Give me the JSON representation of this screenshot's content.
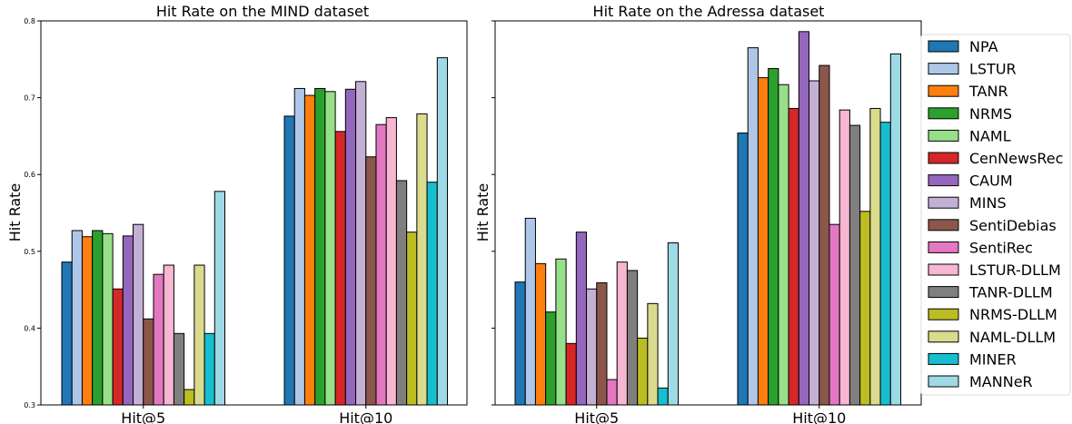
{
  "chart_data": [
    {
      "type": "bar",
      "title": "Hit Rate on the MIND dataset",
      "xlabel": "",
      "ylabel": "Hit Rate",
      "ylim": [
        0.3,
        0.8
      ],
      "yticks": [
        "0.3",
        "0.4",
        "0.5",
        "0.6",
        "0.7",
        "0.8"
      ],
      "categories": [
        "Hit@5",
        "Hit@10"
      ],
      "series": [
        {
          "name": "NPA",
          "values": [
            0.486,
            0.676
          ]
        },
        {
          "name": "LSTUR",
          "values": [
            0.527,
            0.712
          ]
        },
        {
          "name": "TANR",
          "values": [
            0.519,
            0.703
          ]
        },
        {
          "name": "NRMS",
          "values": [
            0.527,
            0.712
          ]
        },
        {
          "name": "NAML",
          "values": [
            0.523,
            0.708
          ]
        },
        {
          "name": "CenNewsRec",
          "values": [
            0.451,
            0.656
          ]
        },
        {
          "name": "CAUM",
          "values": [
            0.52,
            0.711
          ]
        },
        {
          "name": "MINS",
          "values": [
            0.535,
            0.721
          ]
        },
        {
          "name": "SentiDebias",
          "values": [
            0.412,
            0.623
          ]
        },
        {
          "name": "SentiRec",
          "values": [
            0.47,
            0.665
          ]
        },
        {
          "name": "LSTUR-DLLM",
          "values": [
            0.482,
            0.674
          ]
        },
        {
          "name": "TANR-DLLM",
          "values": [
            0.393,
            0.592
          ]
        },
        {
          "name": "NRMS-DLLM",
          "values": [
            0.32,
            0.525
          ]
        },
        {
          "name": "NAML-DLLM",
          "values": [
            0.482,
            0.679
          ]
        },
        {
          "name": "MINER",
          "values": [
            0.393,
            0.59
          ]
        },
        {
          "name": "MANNeR",
          "values": [
            0.578,
            0.752
          ]
        }
      ]
    },
    {
      "type": "bar",
      "title": "Hit Rate on the Adressa dataset",
      "xlabel": "",
      "ylabel": "Hit Rate",
      "ylim": [
        0.3,
        0.8
      ],
      "yticks": [],
      "categories": [
        "Hit@5",
        "Hit@10"
      ],
      "series": [
        {
          "name": "NPA",
          "values": [
            0.46,
            0.654
          ]
        },
        {
          "name": "LSTUR",
          "values": [
            0.543,
            0.765
          ]
        },
        {
          "name": "TANR",
          "values": [
            0.484,
            0.726
          ]
        },
        {
          "name": "NRMS",
          "values": [
            0.421,
            0.738
          ]
        },
        {
          "name": "NAML",
          "values": [
            0.49,
            0.717
          ]
        },
        {
          "name": "CenNewsRec",
          "values": [
            0.38,
            0.686
          ]
        },
        {
          "name": "CAUM",
          "values": [
            0.525,
            0.786
          ]
        },
        {
          "name": "MINS",
          "values": [
            0.451,
            0.722
          ]
        },
        {
          "name": "SentiDebias",
          "values": [
            0.459,
            0.742
          ]
        },
        {
          "name": "SentiRec",
          "values": [
            0.333,
            0.535
          ]
        },
        {
          "name": "LSTUR-DLLM",
          "values": [
            0.486,
            0.684
          ]
        },
        {
          "name": "TANR-DLLM",
          "values": [
            0.475,
            0.664
          ]
        },
        {
          "name": "NRMS-DLLM",
          "values": [
            0.387,
            0.552
          ]
        },
        {
          "name": "NAML-DLLM",
          "values": [
            0.432,
            0.686
          ]
        },
        {
          "name": "MINER",
          "values": [
            0.322,
            0.668
          ]
        },
        {
          "name": "MANNeR",
          "values": [
            0.511,
            0.757
          ]
        }
      ]
    }
  ],
  "legend": {
    "placement": "right",
    "items": [
      "NPA",
      "LSTUR",
      "TANR",
      "NRMS",
      "NAML",
      "CenNewsRec",
      "CAUM",
      "MINS",
      "SentiDebias",
      "SentiRec",
      "LSTUR-DLLM",
      "TANR-DLLM",
      "NRMS-DLLM",
      "NAML-DLLM",
      "MINER",
      "MANNeR"
    ]
  },
  "colors": {
    "NPA": "#1f77b4",
    "LSTUR": "#aec7e8",
    "TANR": "#ff7f0e",
    "NRMS": "#2ca02c",
    "NAML": "#98df8a",
    "CenNewsRec": "#d62728",
    "CAUM": "#9467bd",
    "MINS": "#c5b0d5",
    "SentiDebias": "#8c564b",
    "SentiRec": "#e377c2",
    "LSTUR-DLLM": "#f7b6d2",
    "TANR-DLLM": "#7f7f7f",
    "NRMS-DLLM": "#bcbd22",
    "NAML-DLLM": "#dbdb8d",
    "MINER": "#17becf",
    "MANNeR": "#9edae5"
  }
}
